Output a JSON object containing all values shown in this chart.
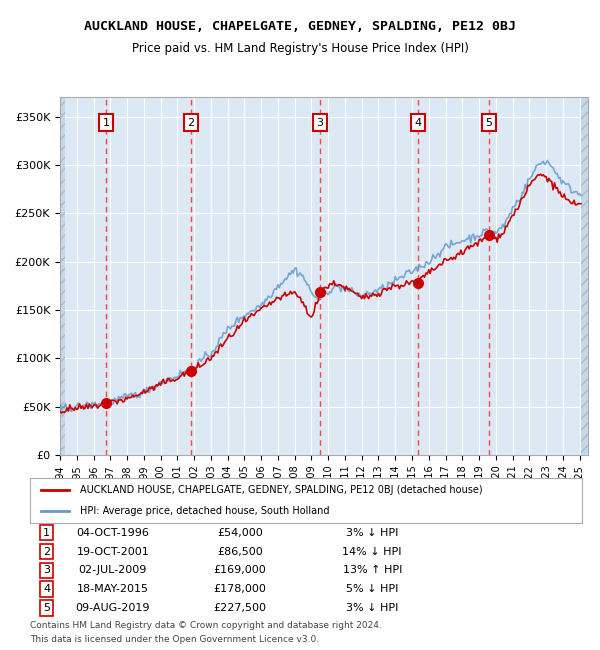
{
  "title": "AUCKLAND HOUSE, CHAPELGATE, GEDNEY, SPALDING, PE12 0BJ",
  "subtitle": "Price paid vs. HM Land Registry's House Price Index (HPI)",
  "property_label": "AUCKLAND HOUSE, CHAPELGATE, GEDNEY, SPALDING, PE12 0BJ (detached house)",
  "hpi_label": "HPI: Average price, detached house, South Holland",
  "footer1": "Contains HM Land Registry data © Crown copyright and database right 2024.",
  "footer2": "This data is licensed under the Open Government Licence v3.0.",
  "sales": [
    {
      "num": 1,
      "date": "04-OCT-1996",
      "price": 54000,
      "pct": "3%",
      "dir": "↓",
      "year": 1996.75
    },
    {
      "num": 2,
      "date": "19-OCT-2001",
      "price": 86500,
      "pct": "14%",
      "dir": "↓",
      "year": 2001.8
    },
    {
      "num": 3,
      "date": "02-JUL-2009",
      "price": 169000,
      "pct": "13%",
      "dir": "↑",
      "year": 2009.5
    },
    {
      "num": 4,
      "date": "18-MAY-2015",
      "price": 178000,
      "pct": "5%",
      "dir": "↓",
      "year": 2015.38
    },
    {
      "num": 5,
      "date": "09-AUG-2019",
      "price": 227500,
      "pct": "3%",
      "dir": "↓",
      "year": 2019.6
    }
  ],
  "ylim": [
    0,
    370000
  ],
  "yticks": [
    0,
    50000,
    100000,
    150000,
    200000,
    250000,
    300000,
    350000
  ],
  "xlim": [
    1994,
    2025.5
  ],
  "bg_color": "#dce9f5",
  "hatch_color": "#b8cfe0",
  "grid_color": "#ffffff",
  "line_color_property": "#cc0000",
  "line_color_hpi": "#6699cc",
  "dot_color": "#cc0000",
  "vline_color": "#ff4444",
  "box_color": "#cc0000"
}
